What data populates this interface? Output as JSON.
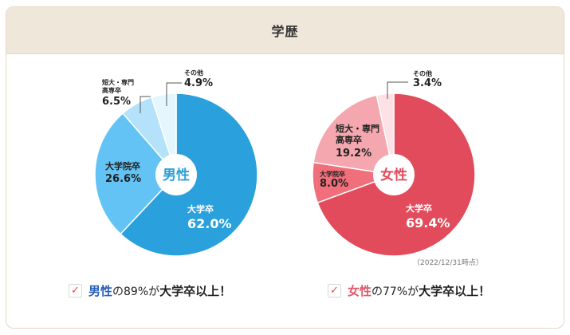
{
  "section_title": "学歴",
  "date_note": "（2022/12/31時点）",
  "captions": [
    {
      "highlight": "男性",
      "highlight_color": "#2a5fb8",
      "middle": "の89%が",
      "strong": "大学卒以上！"
    },
    {
      "highlight": "女性",
      "highlight_color": "#e35a6a",
      "middle": "の77%が",
      "strong": "大学卒以上！"
    }
  ],
  "chart_data": [
    {
      "type": "pie",
      "center_label": "男性",
      "center_color": "#2a9fd8",
      "slices": [
        {
          "label_lines": [
            "大学卒"
          ],
          "value": 62.0,
          "display": "62.0%",
          "color": "#2aa0dc"
        },
        {
          "label_lines": [
            "大学院卒"
          ],
          "value": 26.6,
          "display": "26.6%",
          "color": "#63c3f5"
        },
        {
          "label_lines": [
            "短大・専門",
            "高専卒"
          ],
          "value": 6.5,
          "display": "6.5%",
          "color": "#b4e2fa"
        },
        {
          "label_lines": [
            "その他"
          ],
          "value": 4.9,
          "display": "4.9%",
          "color": "#e6f6fd"
        }
      ]
    },
    {
      "type": "pie",
      "center_label": "女性",
      "center_color": "#e04b5a",
      "slices": [
        {
          "label_lines": [
            "大学卒"
          ],
          "value": 69.4,
          "display": "69.4%",
          "color": "#e24b5b"
        },
        {
          "label_lines": [
            "大学院卒"
          ],
          "value": 8.0,
          "display": "8.0%",
          "color": "#f06f7b"
        },
        {
          "label_lines": [
            "短大・専門",
            "高専卒"
          ],
          "value": 19.2,
          "display": "19.2%",
          "color": "#f4a7ae"
        },
        {
          "label_lines": [
            "その他"
          ],
          "value": 3.4,
          "display": "3.4%",
          "color": "#fde1e4"
        }
      ]
    }
  ]
}
